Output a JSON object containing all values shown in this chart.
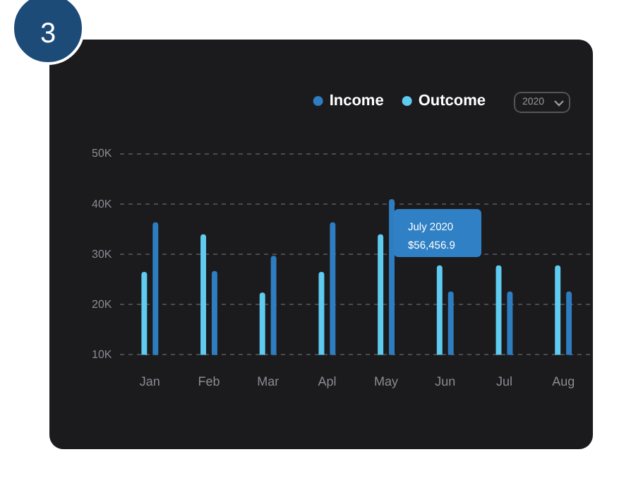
{
  "chart_data": {
    "type": "bar",
    "categories": [
      "Jan",
      "Feb",
      "Mar",
      "Apl",
      "May",
      "Jun",
      "Jul",
      "Aug"
    ],
    "series": [
      {
        "name": "Outcome",
        "color": "#5fcbf0",
        "values": [
          26500,
          34000,
          22400,
          26500,
          34000,
          27800,
          27800,
          27800
        ]
      },
      {
        "name": "Income",
        "color": "#2e7dc0",
        "values": [
          36400,
          26700,
          29700,
          36400,
          41000,
          22600,
          22600,
          22600
        ]
      }
    ],
    "ylim": [
      10000,
      50000
    ],
    "yticks": [
      {
        "value": 10000,
        "label": "10K"
      },
      {
        "value": 20000,
        "label": "20K"
      },
      {
        "value": 30000,
        "label": "30K"
      },
      {
        "value": 40000,
        "label": "40K"
      },
      {
        "value": 50000,
        "label": "50K"
      }
    ],
    "grid": "y",
    "legend": "top right",
    "annotations": [
      "3",
      "2020",
      "July 2020",
      "$56,456.9"
    ]
  }
}
